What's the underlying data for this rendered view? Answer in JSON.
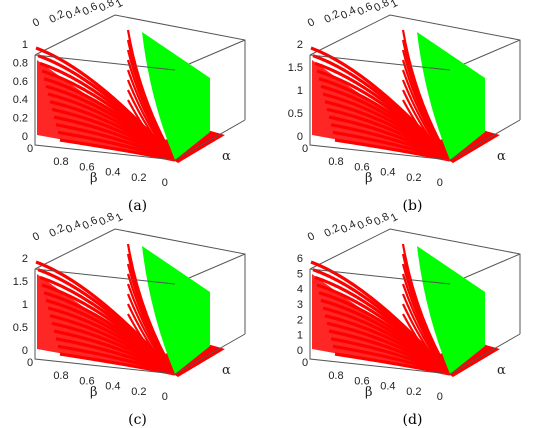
{
  "figure": {
    "colors": {
      "red_surface": "#ff0000",
      "green_surface": "#00ff00",
      "box": "#555555"
    },
    "panels": [
      {
        "caption": "(a)",
        "chart_data": {
          "type": "surface3d",
          "xlabel": "β",
          "ylabel": "α",
          "x_ticks": [
            "0.8",
            "0.6",
            "0.4",
            "0.2",
            "0"
          ],
          "top_ticks": [
            "0",
            "0.2",
            "0.4",
            "0.6",
            "0.8",
            "1"
          ],
          "z_ticks": [
            "0",
            "0.2",
            "0.4",
            "0.6",
            "0.8",
            "1"
          ],
          "zlim": [
            0,
            1
          ],
          "grid": false
        }
      },
      {
        "caption": "(b)",
        "chart_data": {
          "type": "surface3d",
          "xlabel": "β",
          "ylabel": "α",
          "x_ticks": [
            "0.8",
            "0.6",
            "0.4",
            "0.2",
            "0"
          ],
          "top_ticks": [
            "0",
            "0.2",
            "0.4",
            "0.6",
            "0.8",
            "1"
          ],
          "z_ticks": [
            "0",
            "0.5",
            "1",
            "1.5",
            "2"
          ],
          "zlim": [
            0,
            2
          ],
          "grid": false
        }
      },
      {
        "caption": "(c)",
        "chart_data": {
          "type": "surface3d",
          "xlabel": "β",
          "ylabel": "α",
          "x_ticks": [
            "0.8",
            "0.6",
            "0.4",
            "0.2",
            "0"
          ],
          "top_ticks": [
            "0",
            "0.2",
            "0.4",
            "0.6",
            "0.8",
            "1"
          ],
          "z_ticks": [
            "0",
            "0.5",
            "1",
            "1.5",
            "2"
          ],
          "zlim": [
            0,
            2
          ],
          "grid": false
        }
      },
      {
        "caption": "(d)",
        "chart_data": {
          "type": "surface3d",
          "xlabel": "β",
          "ylabel": "α",
          "x_ticks": [
            "0.8",
            "0.6",
            "0.4",
            "0.2",
            "0"
          ],
          "top_ticks": [
            "0",
            "0.2",
            "0.4",
            "0.6",
            "0.8",
            "1"
          ],
          "z_ticks": [
            "0",
            "1",
            "2",
            "3",
            "4",
            "5",
            "6"
          ],
          "zlim": [
            0,
            6
          ],
          "grid": false
        }
      }
    ]
  }
}
